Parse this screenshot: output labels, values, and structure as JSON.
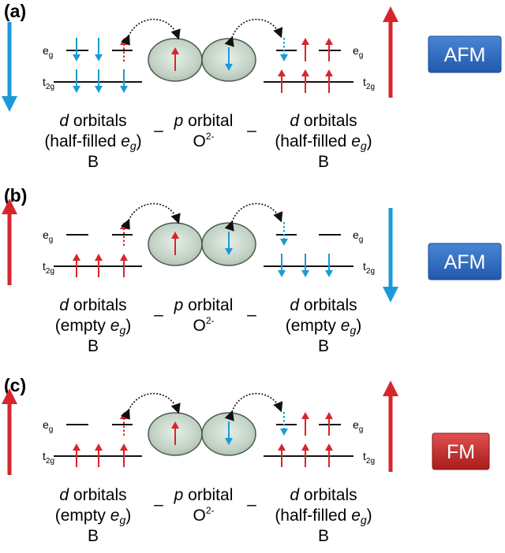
{
  "colors": {
    "spin_up": "#d6262c",
    "spin_down": "#1a9bd7",
    "badge_afm_top": "#4a86d4",
    "badge_afm_bottom": "#2159ad",
    "badge_fm_top": "#e05050",
    "badge_fm_bottom": "#a81c1c",
    "orbital_fill": "#c2d2c5",
    "orbital_stroke": "#4c5a4e",
    "level_line": "#111111",
    "exchange_arrow": "#111111"
  },
  "labels": {
    "eg": "e",
    "eg_sub": "g",
    "t2g": "t",
    "t2g_sub": "2g",
    "d_orbitals_italic": "d",
    "d_orbitals_text": " orbitals",
    "p_orbital_italic": "p",
    "p_orbital_text": " orbital",
    "oxygen": "O",
    "oxygen_charge": "2-",
    "site_b": "B",
    "dash": "–",
    "half_filled_prefix": "(half-filled ",
    "empty_prefix": "(empty ",
    "eg_italic": "e",
    "eg_italic_sub": "g",
    "close_paren": ")"
  },
  "panels": [
    {
      "id": "a",
      "label": "(a)",
      "badge": "AFM",
      "badge_kind": "afm",
      "left_big_spin": "down",
      "right_big_spin": "up",
      "left_eg": [
        "down",
        "down",
        "up-dotted"
      ],
      "left_t2g": [
        "down",
        "down",
        "down"
      ],
      "p_orbital": [
        "up",
        "down"
      ],
      "right_eg": [
        "down-dotted",
        "up",
        "up"
      ],
      "right_t2g": [
        "up",
        "up",
        "up"
      ],
      "left_caption": "half-filled",
      "right_caption": "half-filled"
    },
    {
      "id": "b",
      "label": "(b)",
      "badge": "AFM",
      "badge_kind": "afm",
      "left_big_spin": "up",
      "right_big_spin": "down",
      "left_eg": [
        "none",
        "none",
        "up-dotted"
      ],
      "left_t2g": [
        "up",
        "up",
        "up"
      ],
      "p_orbital": [
        "up",
        "down"
      ],
      "right_eg": [
        "down-dotted",
        "none",
        "none"
      ],
      "right_t2g": [
        "down",
        "down",
        "down"
      ],
      "left_caption": "empty",
      "right_caption": "empty"
    },
    {
      "id": "c",
      "label": "(c)",
      "badge": "FM",
      "badge_kind": "fm",
      "left_big_spin": "up",
      "right_big_spin": "up",
      "left_eg": [
        "none",
        "none",
        "up-dotted"
      ],
      "left_t2g": [
        "up",
        "up",
        "up"
      ],
      "p_orbital": [
        "up",
        "down"
      ],
      "right_eg": [
        "down-dotted",
        "up",
        "up"
      ],
      "right_t2g": [
        "up",
        "up",
        "up"
      ],
      "left_caption": "empty",
      "right_caption": "half-filled"
    }
  ]
}
